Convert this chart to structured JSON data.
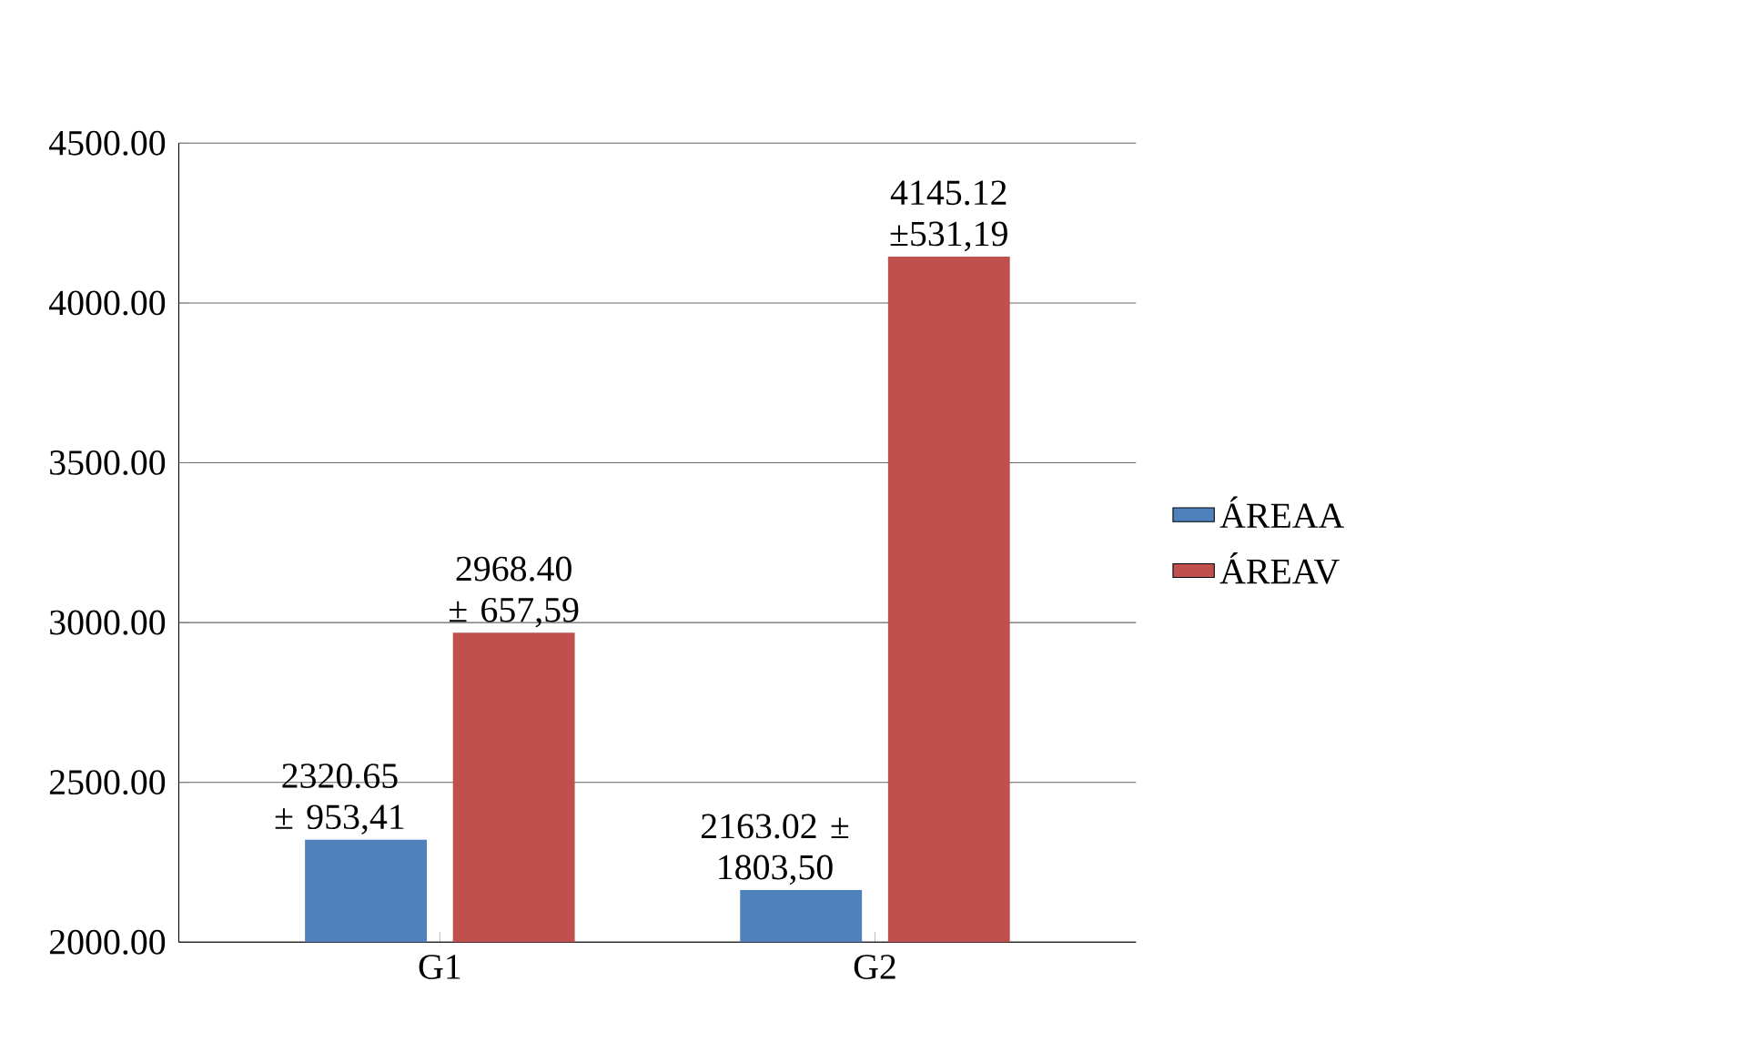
{
  "chart_data": {
    "type": "bar",
    "categories": [
      "G1",
      "G2"
    ],
    "series": [
      {
        "name": "ÁREAA",
        "color": "#4f81bd",
        "values": [
          2320.65,
          2163.02
        ],
        "value_labels": [
          "2320.65 ± 953,41",
          "2163.02 ± 1803,50"
        ]
      },
      {
        "name": "ÁREAV",
        "color": "#c0504d",
        "values": [
          2968.4,
          4145.12
        ],
        "value_labels": [
          "2968.40 ± 657,59",
          "4145.12 ±531,19"
        ]
      }
    ],
    "ylim": [
      2000,
      4500
    ],
    "yticks": [
      {
        "value": 2000,
        "label": "2000.00"
      },
      {
        "value": 2500,
        "label": "2500.00"
      },
      {
        "value": 3000,
        "label": "3000.00"
      },
      {
        "value": 3500,
        "label": "3500.00"
      },
      {
        "value": 4000,
        "label": "4000.00"
      },
      {
        "value": 4500,
        "label": "4500.00"
      }
    ],
    "grid": "y",
    "legend": "right"
  }
}
